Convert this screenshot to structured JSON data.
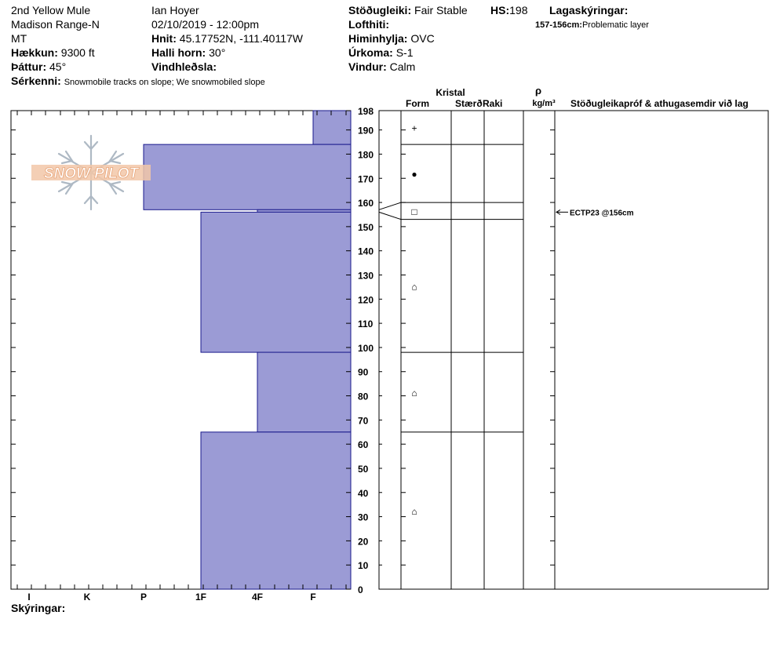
{
  "header": {
    "location": "2nd Yellow Mule",
    "range": "Madison Range-N",
    "state": "MT",
    "elevation_label": "Hækkun:",
    "elevation": "9300 ft",
    "aspect_label": "Þáttur:",
    "aspect": "45°",
    "observer": "Ian Hoyer",
    "datetime": "02/10/2019 - 12:00pm",
    "coords_label": "Hnit:",
    "coords": "45.17752N, -111.40117W",
    "slope_label": "Halli horn:",
    "slope": "30°",
    "wind_loading_label": "Vindhleðsla:",
    "stability_label": "Stöðugleiki:",
    "stability": "Fair Stable",
    "hs_label": "HS:",
    "hs": "198",
    "air_temp_label": "Lofthiti:",
    "sky_label": "Himinhylja:",
    "sky": "OVC",
    "precip_label": "Úrkoma:",
    "precip": "S-1",
    "wind_label": "Vindur:",
    "wind": "Calm",
    "layer_notes_label": "Lagaskýringar:",
    "layer_note_range": "157-156cm:",
    "layer_note_text": "Problematic layer",
    "features_label": "Sérkenni:",
    "features": "Snowmobile tracks on slope; We snowmobiled slope",
    "notes_label": "Skýringar:"
  },
  "logo": {
    "text": "SNOW PILOT"
  },
  "table_headers": {
    "crystal": "Kristal",
    "form": "Form",
    "size": "Stærð",
    "moisture": "Raki",
    "rho": "ρ",
    "density_unit": "kg/m³",
    "tests": "Stöðugleikapróf & athugasemdir við lag"
  },
  "chart_data": {
    "type": "snow-profile",
    "y_unit": "cm",
    "ylim": [
      0,
      198
    ],
    "y_ticks": [
      0,
      10,
      20,
      30,
      40,
      50,
      60,
      70,
      80,
      90,
      100,
      110,
      120,
      130,
      140,
      150,
      160,
      170,
      180,
      190,
      198
    ],
    "hardness_scale": [
      "I",
      "K",
      "P",
      "1F",
      "4F",
      "F"
    ],
    "layers": [
      {
        "top": 198,
        "bottom": 184,
        "hardness": "F"
      },
      {
        "top": 184,
        "bottom": 157,
        "hardness": "P"
      },
      {
        "top": 157,
        "bottom": 156,
        "hardness": "4F"
      },
      {
        "top": 156,
        "bottom": 98,
        "hardness": "1F"
      },
      {
        "top": 98,
        "bottom": 65,
        "hardness": "4F"
      },
      {
        "top": 65,
        "bottom": 0,
        "hardness": "1F"
      }
    ],
    "crystal_layers": [
      {
        "top": 198,
        "bottom": 184,
        "form": "+"
      },
      {
        "top": 184,
        "bottom": 160,
        "form": "●"
      },
      {
        "top": 160,
        "bottom": 153,
        "form": "□"
      },
      {
        "top": 153,
        "bottom": 98,
        "form": "⌂"
      },
      {
        "top": 98,
        "bottom": 65,
        "form": "⌂"
      },
      {
        "top": 65,
        "bottom": 0,
        "form": "⌂"
      }
    ],
    "tests": [
      {
        "depth": 156,
        "label": "ECTP23 @156cm"
      }
    ],
    "colors": {
      "fill": "#9b9bd5",
      "stroke": "#1a1a8c"
    }
  }
}
